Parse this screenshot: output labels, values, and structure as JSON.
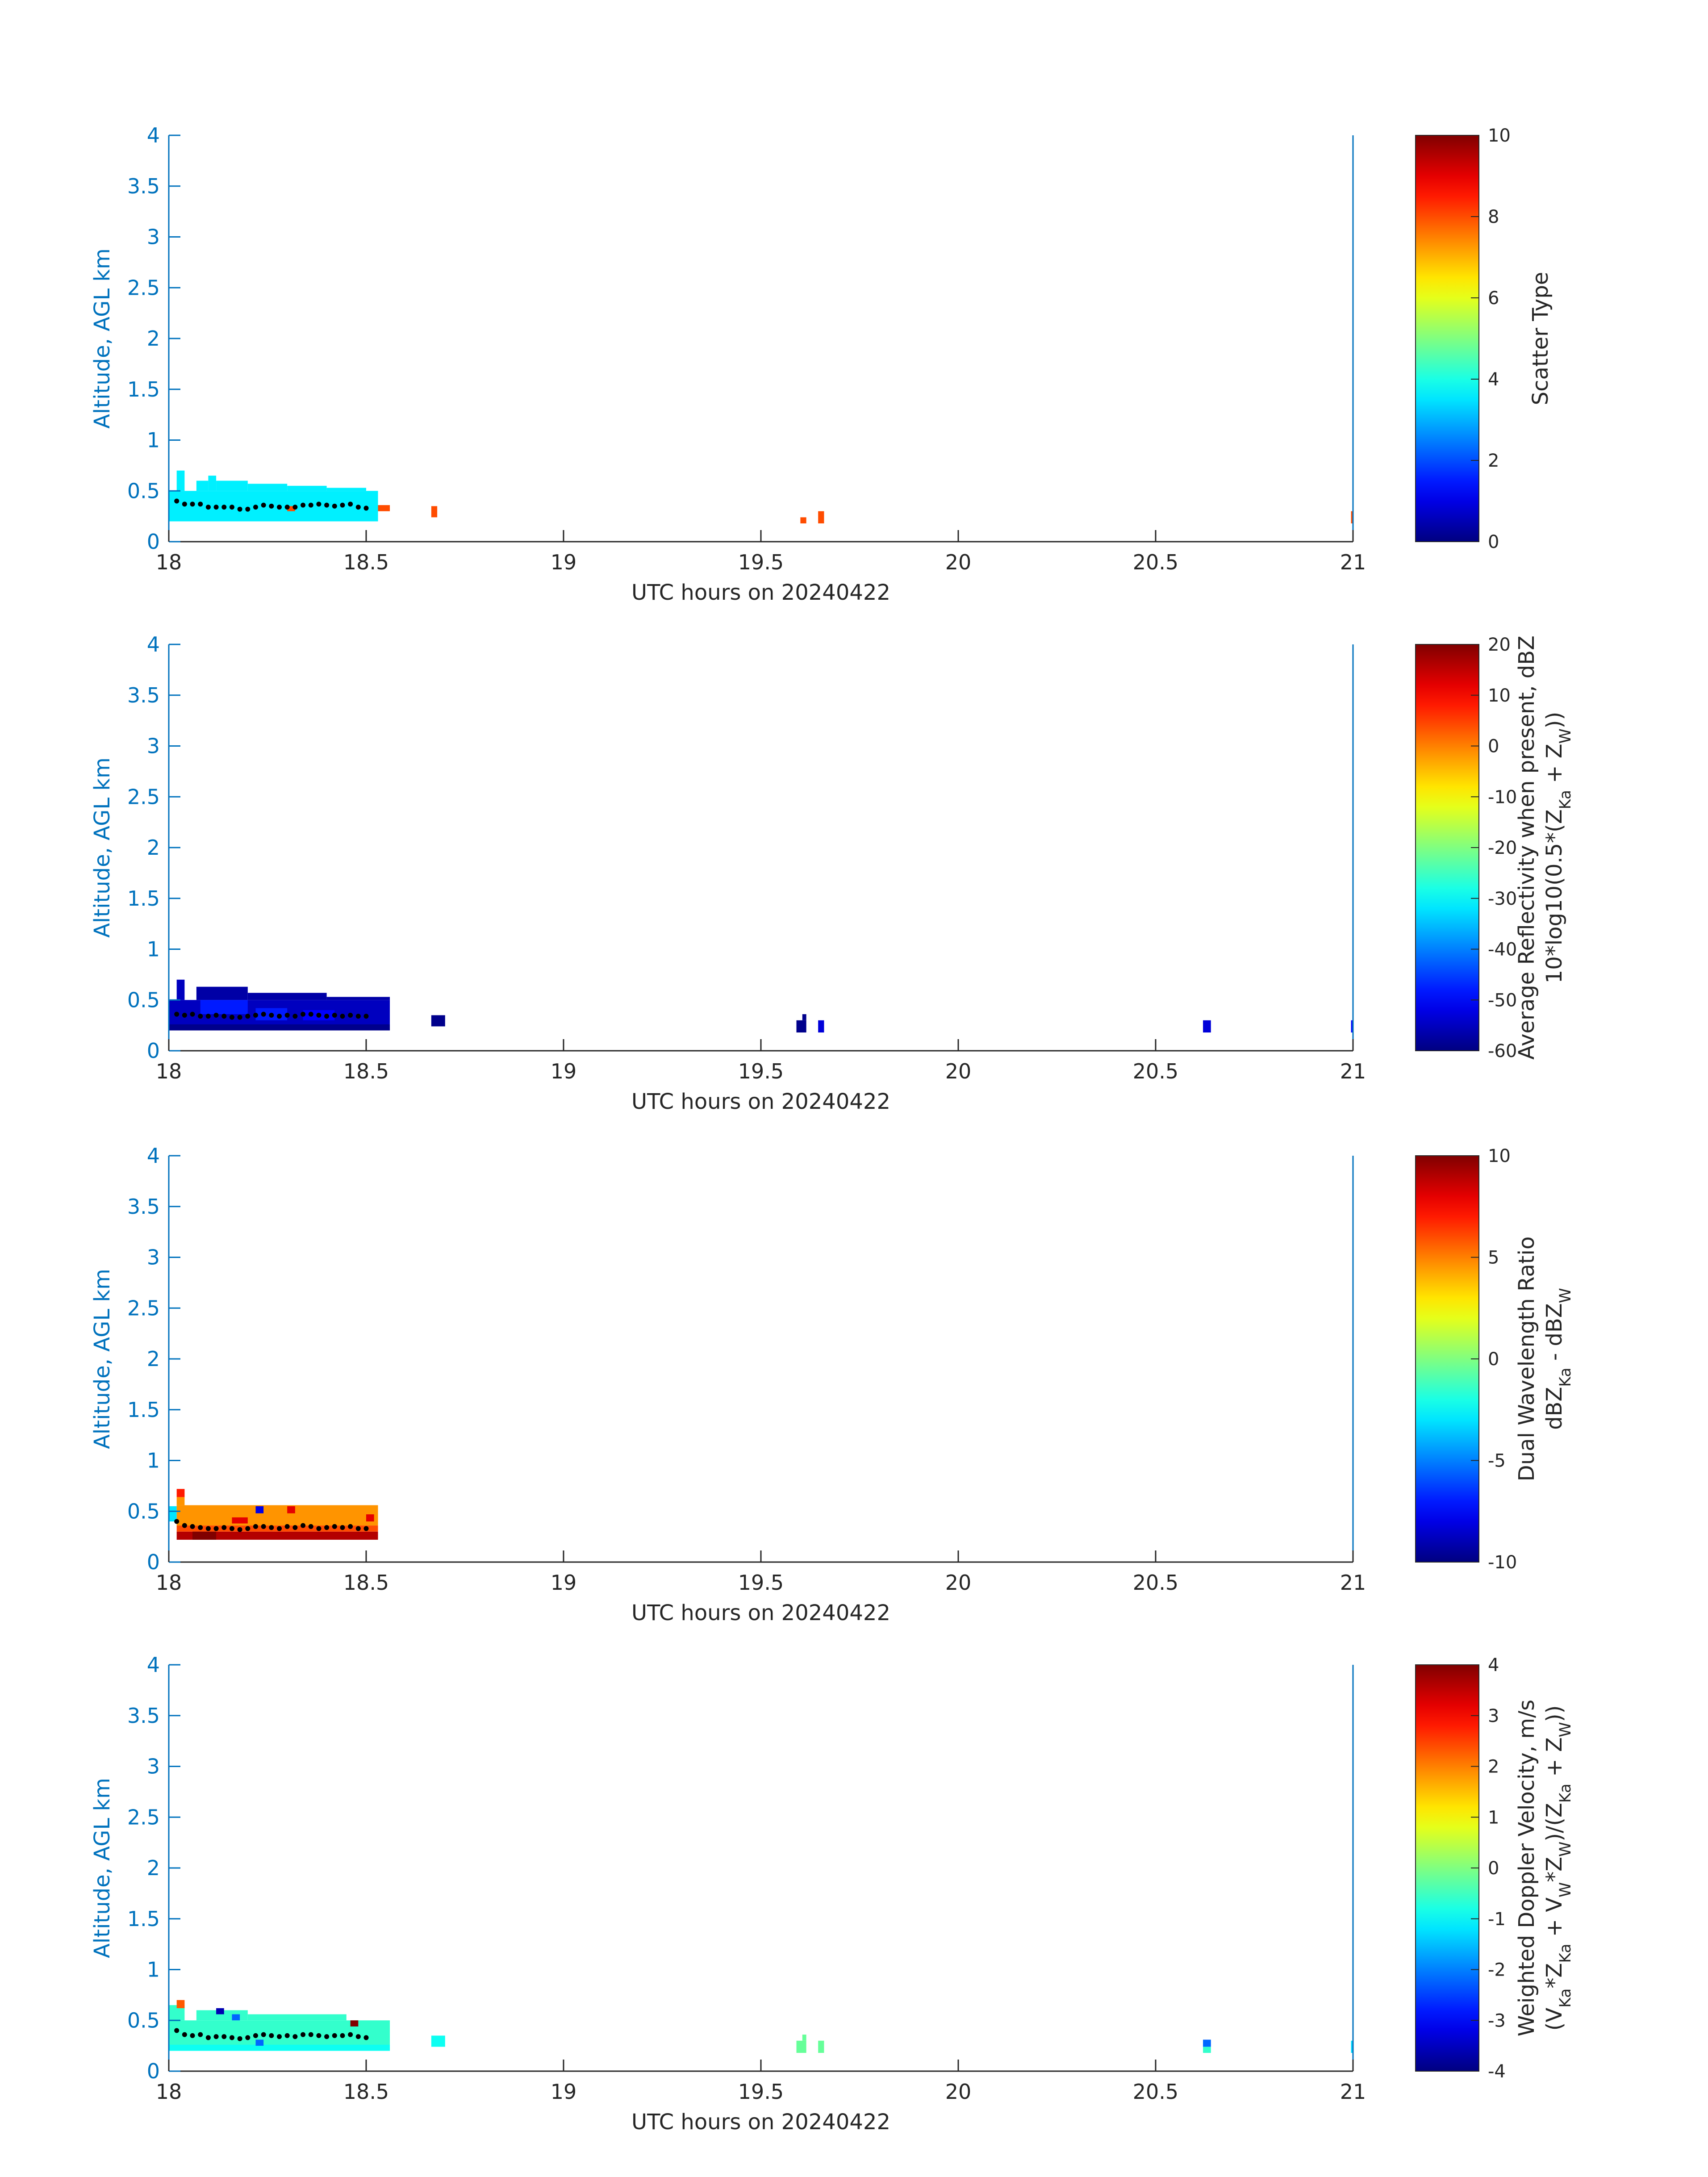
{
  "colors": {
    "yaxis": "#0072bd",
    "text": "#262626",
    "fit_points": "#000000"
  },
  "chart_data": [
    {
      "type": "heatmap",
      "colormap": "jet",
      "xlabel": "UTC hours on 20240422",
      "ylabel": "Altitude, AGL km",
      "xlim": [
        18,
        21
      ],
      "ylim": [
        0,
        4
      ],
      "xticks": [
        "18",
        "18.5",
        "19",
        "19.5",
        "20",
        "20.5",
        "21"
      ],
      "yticks": [
        "0",
        "0.5",
        "1",
        "1.5",
        "2",
        "2.5",
        "3",
        "3.5",
        "4"
      ],
      "colorbar": {
        "label_lines": [
          [
            {
              "t": "Scatter Type"
            }
          ]
        ],
        "clim": [
          0,
          10
        ],
        "ticks": [
          "0",
          "2",
          "4",
          "6",
          "8",
          "10"
        ]
      },
      "blocks": [
        {
          "x0": 18.0,
          "x1": 18.53,
          "y0": 0.2,
          "y1": 0.5,
          "v": 3.6
        },
        {
          "x0": 18.02,
          "x1": 18.04,
          "y0": 0.5,
          "y1": 0.7,
          "v": 3.6
        },
        {
          "x0": 18.07,
          "x1": 18.1,
          "y0": 0.5,
          "y1": 0.6,
          "v": 3.6
        },
        {
          "x0": 18.1,
          "x1": 18.12,
          "y0": 0.5,
          "y1": 0.65,
          "v": 3.6
        },
        {
          "x0": 18.12,
          "x1": 18.2,
          "y0": 0.5,
          "y1": 0.6,
          "v": 3.6
        },
        {
          "x0": 18.2,
          "x1": 18.3,
          "y0": 0.5,
          "y1": 0.57,
          "v": 3.6
        },
        {
          "x0": 18.3,
          "x1": 18.4,
          "y0": 0.5,
          "y1": 0.55,
          "v": 3.6
        },
        {
          "x0": 18.4,
          "x1": 18.5,
          "y0": 0.5,
          "y1": 0.53,
          "v": 3.6
        },
        {
          "x0": 18.3,
          "x1": 18.32,
          "y0": 0.3,
          "y1": 0.35,
          "v": 8.0
        },
        {
          "x0": 18.53,
          "x1": 18.56,
          "y0": 0.3,
          "y1": 0.36,
          "v": 8.0
        },
        {
          "x0": 18.665,
          "x1": 18.68,
          "y0": 0.24,
          "y1": 0.35,
          "v": 8.0
        },
        {
          "x0": 19.6,
          "x1": 19.615,
          "y0": 0.18,
          "y1": 0.24,
          "v": 8.0
        },
        {
          "x0": 19.645,
          "x1": 19.66,
          "y0": 0.18,
          "y1": 0.3,
          "v": 8.0
        },
        {
          "x0": 20.995,
          "x1": 21.0,
          "y0": 0.18,
          "y1": 0.3,
          "v": 8.0
        }
      ],
      "points": [
        [
          18.02,
          0.4
        ],
        [
          18.04,
          0.37
        ],
        [
          18.06,
          0.37
        ],
        [
          18.08,
          0.37
        ],
        [
          18.1,
          0.34
        ],
        [
          18.12,
          0.34
        ],
        [
          18.14,
          0.34
        ],
        [
          18.16,
          0.34
        ],
        [
          18.18,
          0.32
        ],
        [
          18.2,
          0.32
        ],
        [
          18.22,
          0.34
        ],
        [
          18.24,
          0.36
        ],
        [
          18.26,
          0.35
        ],
        [
          18.28,
          0.34
        ],
        [
          18.3,
          0.34
        ],
        [
          18.32,
          0.34
        ],
        [
          18.34,
          0.36
        ],
        [
          18.36,
          0.36
        ],
        [
          18.38,
          0.37
        ],
        [
          18.4,
          0.36
        ],
        [
          18.42,
          0.35
        ],
        [
          18.44,
          0.36
        ],
        [
          18.46,
          0.37
        ],
        [
          18.48,
          0.34
        ],
        [
          18.5,
          0.33
        ]
      ]
    },
    {
      "type": "heatmap",
      "colormap": "jet",
      "xlabel": "UTC hours on 20240422",
      "ylabel": "Altitude, AGL km",
      "xlim": [
        18,
        21
      ],
      "ylim": [
        0,
        4
      ],
      "xticks": [
        "18",
        "18.5",
        "19",
        "19.5",
        "20",
        "20.5",
        "21"
      ],
      "yticks": [
        "0",
        "0.5",
        "1",
        "1.5",
        "2",
        "2.5",
        "3",
        "3.5",
        "4"
      ],
      "colorbar": {
        "label_lines": [
          [
            {
              "t": "Average Reflectivity when present, dBZ"
            }
          ],
          [
            {
              "t": "10*log10(0.5*(Z"
            },
            {
              "t": "Ka",
              "sub": true
            },
            {
              "t": " + Z"
            },
            {
              "t": "W",
              "sub": true
            },
            {
              "t": "))"
            }
          ]
        ],
        "clim": [
          -60,
          20
        ],
        "ticks": [
          "-60",
          "-50",
          "-40",
          "-30",
          "-20",
          "-10",
          "0",
          "10",
          "20"
        ]
      },
      "blocks": [
        {
          "x0": 18.0,
          "x1": 18.56,
          "y0": 0.2,
          "y1": 0.5,
          "v": -55
        },
        {
          "x0": 18.02,
          "x1": 18.04,
          "y0": 0.5,
          "y1": 0.7,
          "v": -55
        },
        {
          "x0": 18.07,
          "x1": 18.2,
          "y0": 0.5,
          "y1": 0.63,
          "v": -57
        },
        {
          "x0": 18.2,
          "x1": 18.4,
          "y0": 0.5,
          "y1": 0.57,
          "v": -57
        },
        {
          "x0": 18.4,
          "x1": 18.56,
          "y0": 0.5,
          "y1": 0.53,
          "v": -57
        },
        {
          "x0": 18.08,
          "x1": 18.2,
          "y0": 0.36,
          "y1": 0.5,
          "v": -48
        },
        {
          "x0": 18.22,
          "x1": 18.3,
          "y0": 0.3,
          "y1": 0.42,
          "v": -48
        },
        {
          "x0": 18.34,
          "x1": 18.42,
          "y0": 0.3,
          "y1": 0.4,
          "v": -50
        },
        {
          "x0": 18.0,
          "x1": 18.56,
          "y0": 0.2,
          "y1": 0.26,
          "v": -59
        },
        {
          "x0": 18.665,
          "x1": 18.7,
          "y0": 0.24,
          "y1": 0.35,
          "v": -59
        },
        {
          "x0": 19.59,
          "x1": 19.615,
          "y0": 0.18,
          "y1": 0.3,
          "v": -59
        },
        {
          "x0": 19.605,
          "x1": 19.615,
          "y0": 0.3,
          "y1": 0.36,
          "v": -59
        },
        {
          "x0": 19.645,
          "x1": 19.66,
          "y0": 0.18,
          "y1": 0.3,
          "v": -53
        },
        {
          "x0": 20.62,
          "x1": 20.64,
          "y0": 0.18,
          "y1": 0.3,
          "v": -53
        },
        {
          "x0": 20.995,
          "x1": 21.0,
          "y0": 0.18,
          "y1": 0.3,
          "v": -50
        }
      ],
      "points": [
        [
          18.02,
          0.36
        ],
        [
          18.04,
          0.35
        ],
        [
          18.06,
          0.36
        ],
        [
          18.08,
          0.34
        ],
        [
          18.1,
          0.34
        ],
        [
          18.12,
          0.35
        ],
        [
          18.14,
          0.34
        ],
        [
          18.16,
          0.33
        ],
        [
          18.18,
          0.33
        ],
        [
          18.2,
          0.34
        ],
        [
          18.22,
          0.35
        ],
        [
          18.24,
          0.36
        ],
        [
          18.26,
          0.35
        ],
        [
          18.28,
          0.34
        ],
        [
          18.3,
          0.35
        ],
        [
          18.32,
          0.34
        ],
        [
          18.34,
          0.36
        ],
        [
          18.36,
          0.36
        ],
        [
          18.38,
          0.35
        ],
        [
          18.4,
          0.34
        ],
        [
          18.42,
          0.35
        ],
        [
          18.44,
          0.34
        ],
        [
          18.46,
          0.35
        ],
        [
          18.48,
          0.34
        ],
        [
          18.5,
          0.34
        ]
      ]
    },
    {
      "type": "heatmap",
      "colormap": "jet",
      "xlabel": "UTC hours on 20240422",
      "ylabel": "Altitude, AGL km",
      "xlim": [
        18,
        21
      ],
      "ylim": [
        0,
        4
      ],
      "xticks": [
        "18",
        "18.5",
        "19",
        "19.5",
        "20",
        "20.5",
        "21"
      ],
      "yticks": [
        "0",
        "0.5",
        "1",
        "1.5",
        "2",
        "2.5",
        "3",
        "3.5",
        "4"
      ],
      "colorbar": {
        "label_lines": [
          [
            {
              "t": "Dual Wavelength Ratio"
            }
          ],
          [
            {
              "t": "dBZ"
            },
            {
              "t": "Ka",
              "sub": true
            },
            {
              "t": " - dBZ"
            },
            {
              "t": "W",
              "sub": true
            }
          ]
        ],
        "clim": [
          -10,
          10
        ],
        "ticks": [
          "-10",
          "-5",
          "0",
          "5",
          "10"
        ]
      },
      "blocks": [
        {
          "x0": 18.0,
          "x1": 18.02,
          "y0": 0.4,
          "y1": 0.55,
          "v": -3
        },
        {
          "x0": 18.02,
          "x1": 18.53,
          "y0": 0.36,
          "y1": 0.56,
          "v": 4.6
        },
        {
          "x0": 18.02,
          "x1": 18.04,
          "y0": 0.56,
          "y1": 0.64,
          "v": 4.6
        },
        {
          "x0": 18.02,
          "x1": 18.04,
          "y0": 0.64,
          "y1": 0.72,
          "v": 7
        },
        {
          "x0": 18.02,
          "x1": 18.53,
          "y0": 0.22,
          "y1": 0.3,
          "v": 9
        },
        {
          "x0": 18.02,
          "x1": 18.53,
          "y0": 0.3,
          "y1": 0.36,
          "v": 6
        },
        {
          "x0": 18.22,
          "x1": 18.24,
          "y0": 0.48,
          "y1": 0.55,
          "v": -8
        },
        {
          "x0": 18.3,
          "x1": 18.32,
          "y0": 0.48,
          "y1": 0.55,
          "v": 8
        },
        {
          "x0": 18.5,
          "x1": 18.52,
          "y0": 0.4,
          "y1": 0.47,
          "v": 8
        },
        {
          "x0": 18.16,
          "x1": 18.2,
          "y0": 0.38,
          "y1": 0.44,
          "v": 8
        },
        {
          "x0": 18.06,
          "x1": 18.12,
          "y0": 0.22,
          "y1": 0.3,
          "v": 10
        }
      ],
      "points": [
        [
          18.02,
          0.4
        ],
        [
          18.04,
          0.36
        ],
        [
          18.06,
          0.35
        ],
        [
          18.08,
          0.34
        ],
        [
          18.1,
          0.33
        ],
        [
          18.12,
          0.33
        ],
        [
          18.14,
          0.34
        ],
        [
          18.16,
          0.33
        ],
        [
          18.18,
          0.32
        ],
        [
          18.2,
          0.33
        ],
        [
          18.22,
          0.35
        ],
        [
          18.24,
          0.35
        ],
        [
          18.26,
          0.34
        ],
        [
          18.28,
          0.33
        ],
        [
          18.3,
          0.35
        ],
        [
          18.32,
          0.34
        ],
        [
          18.34,
          0.36
        ],
        [
          18.36,
          0.35
        ],
        [
          18.38,
          0.33
        ],
        [
          18.4,
          0.34
        ],
        [
          18.42,
          0.35
        ],
        [
          18.44,
          0.34
        ],
        [
          18.46,
          0.35
        ],
        [
          18.48,
          0.33
        ],
        [
          18.5,
          0.33
        ]
      ]
    },
    {
      "type": "heatmap",
      "colormap": "jet",
      "xlabel": "UTC hours on 20240422",
      "ylabel": "Altitude, AGL km",
      "xlim": [
        18,
        21
      ],
      "ylim": [
        0,
        4
      ],
      "xticks": [
        "18",
        "18.5",
        "19",
        "19.5",
        "20",
        "20.5",
        "21"
      ],
      "yticks": [
        "0",
        "0.5",
        "1",
        "1.5",
        "2",
        "2.5",
        "3",
        "3.5",
        "4"
      ],
      "colorbar": {
        "label_lines": [
          [
            {
              "t": "Weighted Doppler Velocity, m/s"
            }
          ],
          [
            {
              "t": "(V"
            },
            {
              "t": "Ka",
              "sub": true
            },
            {
              "t": "*Z"
            },
            {
              "t": "Ka",
              "sub": true
            },
            {
              "t": " + V"
            },
            {
              "t": "W",
              "sub": true
            },
            {
              "t": "*Z"
            },
            {
              "t": "W",
              "sub": true
            },
            {
              "t": ")/(Z"
            },
            {
              "t": "Ka",
              "sub": true
            },
            {
              "t": " + Z"
            },
            {
              "t": "W",
              "sub": true
            },
            {
              "t": "))"
            }
          ]
        ],
        "clim": [
          -4,
          4
        ],
        "ticks": [
          "-4",
          "-3",
          "-2",
          "-1",
          "0",
          "1",
          "2",
          "3",
          "4"
        ]
      },
      "blocks": [
        {
          "x0": 18.0,
          "x1": 18.56,
          "y0": 0.2,
          "y1": 0.5,
          "v": -0.6
        },
        {
          "x0": 18.0,
          "x1": 18.04,
          "y0": 0.5,
          "y1": 0.65,
          "v": -0.6
        },
        {
          "x0": 18.07,
          "x1": 18.2,
          "y0": 0.5,
          "y1": 0.6,
          "v": -0.6
        },
        {
          "x0": 18.2,
          "x1": 18.45,
          "y0": 0.5,
          "y1": 0.56,
          "v": -0.6
        },
        {
          "x0": 18.0,
          "x1": 18.56,
          "y0": 0.2,
          "y1": 0.26,
          "v": -0.9
        },
        {
          "x0": 18.02,
          "x1": 18.04,
          "y0": 0.62,
          "y1": 0.7,
          "v": 2.3
        },
        {
          "x0": 18.12,
          "x1": 18.14,
          "y0": 0.56,
          "y1": 0.62,
          "v": -3.6
        },
        {
          "x0": 18.16,
          "x1": 18.18,
          "y0": 0.5,
          "y1": 0.56,
          "v": -2.2
        },
        {
          "x0": 18.22,
          "x1": 18.24,
          "y0": 0.25,
          "y1": 0.31,
          "v": -2.2
        },
        {
          "x0": 18.46,
          "x1": 18.48,
          "y0": 0.44,
          "y1": 0.5,
          "v": 4
        },
        {
          "x0": 18.665,
          "x1": 18.7,
          "y0": 0.24,
          "y1": 0.35,
          "v": -0.9
        },
        {
          "x0": 19.59,
          "x1": 19.615,
          "y0": 0.18,
          "y1": 0.3,
          "v": -0.2
        },
        {
          "x0": 19.605,
          "x1": 19.615,
          "y0": 0.3,
          "y1": 0.36,
          "v": -0.2
        },
        {
          "x0": 19.645,
          "x1": 19.66,
          "y0": 0.18,
          "y1": 0.3,
          "v": -0.2
        },
        {
          "x0": 20.62,
          "x1": 20.64,
          "y0": 0.24,
          "y1": 0.31,
          "v": -2.2
        },
        {
          "x0": 20.62,
          "x1": 20.64,
          "y0": 0.18,
          "y1": 0.24,
          "v": -0.6
        },
        {
          "x0": 20.995,
          "x1": 21.0,
          "y0": 0.18,
          "y1": 0.3,
          "v": -1.3
        }
      ],
      "points": [
        [
          18.02,
          0.4
        ],
        [
          18.04,
          0.36
        ],
        [
          18.06,
          0.35
        ],
        [
          18.08,
          0.36
        ],
        [
          18.1,
          0.33
        ],
        [
          18.12,
          0.34
        ],
        [
          18.14,
          0.34
        ],
        [
          18.16,
          0.33
        ],
        [
          18.18,
          0.32
        ],
        [
          18.2,
          0.33
        ],
        [
          18.22,
          0.35
        ],
        [
          18.24,
          0.36
        ],
        [
          18.26,
          0.35
        ],
        [
          18.28,
          0.34
        ],
        [
          18.3,
          0.35
        ],
        [
          18.32,
          0.34
        ],
        [
          18.34,
          0.36
        ],
        [
          18.36,
          0.36
        ],
        [
          18.38,
          0.35
        ],
        [
          18.4,
          0.34
        ],
        [
          18.42,
          0.35
        ],
        [
          18.44,
          0.35
        ],
        [
          18.46,
          0.36
        ],
        [
          18.48,
          0.34
        ],
        [
          18.5,
          0.33
        ]
      ]
    }
  ]
}
